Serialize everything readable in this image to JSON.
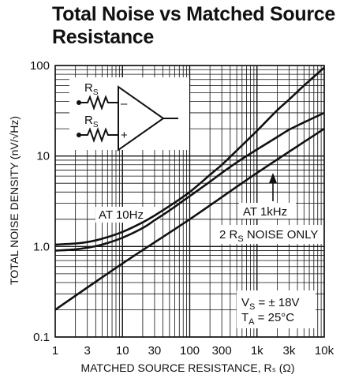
{
  "chart_data": {
    "type": "line",
    "title": "Total Noise vs Matched Source Resistance",
    "xlabel": "MATCHED SOURCE RESISTANCE, R_S (Ω)",
    "ylabel": "TOTAL NOISE DENSITY (nV/√Hz)",
    "x_scale": "log",
    "y_scale": "log",
    "xlim": [
      1,
      10000
    ],
    "ylim": [
      0.1,
      100
    ],
    "grid": true,
    "x_ticks": [
      {
        "value": 1,
        "label": "1"
      },
      {
        "value": 3,
        "label": "3"
      },
      {
        "value": 10,
        "label": "10"
      },
      {
        "value": 30,
        "label": "30"
      },
      {
        "value": 100,
        "label": "100"
      },
      {
        "value": 300,
        "label": "300"
      },
      {
        "value": 1000,
        "label": "1k"
      },
      {
        "value": 3000,
        "label": "3k"
      },
      {
        "value": 10000,
        "label": "10k"
      }
    ],
    "y_ticks": [
      {
        "value": 0.1,
        "label": "0.1"
      },
      {
        "value": 1,
        "label": "1.0"
      },
      {
        "value": 10,
        "label": "10"
      },
      {
        "value": 100,
        "label": "100"
      }
    ],
    "series": [
      {
        "label": "AT 10Hz",
        "x": [
          1,
          2,
          3,
          5,
          10,
          20,
          30,
          50,
          100,
          200,
          300,
          500,
          1000,
          2000,
          3000,
          5000,
          10000
        ],
        "y": [
          1.05,
          1.08,
          1.12,
          1.22,
          1.45,
          1.85,
          2.2,
          2.8,
          4.0,
          6.2,
          8.0,
          11.5,
          19,
          32,
          42,
          60,
          95
        ]
      },
      {
        "label": "AT 1kHz",
        "x": [
          1,
          2,
          3,
          5,
          10,
          20,
          30,
          50,
          100,
          200,
          300,
          500,
          1000,
          2000,
          3000,
          5000,
          10000
        ],
        "y": [
          0.9,
          0.93,
          0.97,
          1.05,
          1.25,
          1.6,
          1.95,
          2.5,
          3.6,
          5.2,
          6.5,
          8.5,
          11.8,
          16.2,
          19.5,
          23.5,
          30
        ]
      },
      {
        "label": "2 R_S NOISE ONLY",
        "x": [
          1,
          10,
          100,
          1000,
          10000
        ],
        "y": [
          0.2,
          0.65,
          2.0,
          6.5,
          20
        ]
      }
    ],
    "annotations": {
      "at_10hz": "AT 10Hz",
      "at_1khz": "AT 1kHz",
      "rs_noise_prefix": "2 R",
      "rs_noise_sub": "S",
      "rs_noise_suffix": " NOISE ONLY",
      "vs_main": "V",
      "vs_sub": "S",
      "vs_value": " = ± 18V",
      "ta_main": "T",
      "ta_sub": "A",
      "ta_value": " = 25°C"
    },
    "schematic_labels": {
      "rs_main": "R",
      "rs_sub": "S",
      "minus_sign": "–",
      "plus_sign": "+"
    }
  }
}
